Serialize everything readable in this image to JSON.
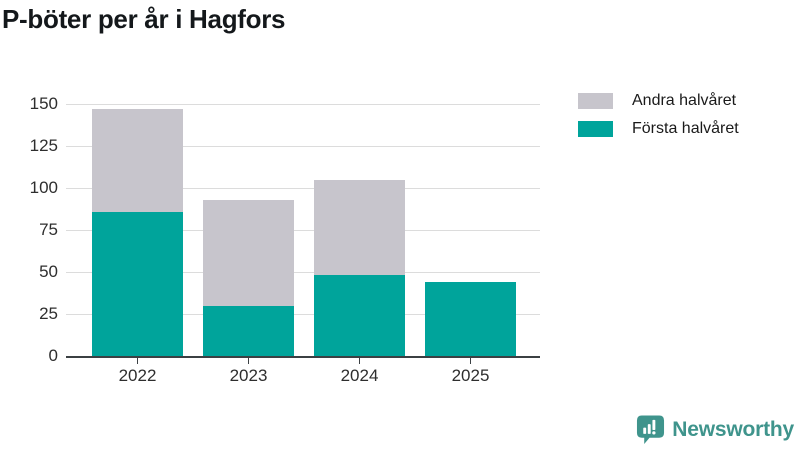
{
  "title": "P-böter per år i Hagfors",
  "legend": {
    "items": [
      {
        "label": "Andra halvåret",
        "color": "#c7c5cc"
      },
      {
        "label": "Första halvåret",
        "color": "#00a49b"
      }
    ]
  },
  "footer": {
    "brand": "Newsworthy",
    "color": "#3f948c"
  },
  "colors": {
    "first_half": "#00a49b",
    "second_half": "#c7c5cc",
    "grid": "#dcdcdc",
    "axis": "#3b4043",
    "tick_text": "#2e2e2e",
    "title_text": "#14181b"
  },
  "chart_data": {
    "type": "bar",
    "stacked": true,
    "title": "P-böter per år i Hagfors",
    "categories": [
      "2022",
      "2023",
      "2024",
      "2025"
    ],
    "series": [
      {
        "name": "Första halvåret",
        "color": "#00a49b",
        "values": [
          86,
          30,
          48,
          44
        ]
      },
      {
        "name": "Andra halvåret",
        "color": "#c7c5cc",
        "values": [
          61,
          63,
          57,
          0
        ]
      }
    ],
    "stack_totals": [
      147,
      93,
      105,
      44
    ],
    "xlabel": "",
    "ylabel": "",
    "ylim": [
      0,
      150
    ],
    "ytick_step": 25,
    "yticks": [
      0,
      25,
      50,
      75,
      100,
      125,
      150
    ],
    "grid": true,
    "legend_position": "top-right",
    "legend_order": [
      "Andra halvåret",
      "Första halvåret"
    ]
  }
}
